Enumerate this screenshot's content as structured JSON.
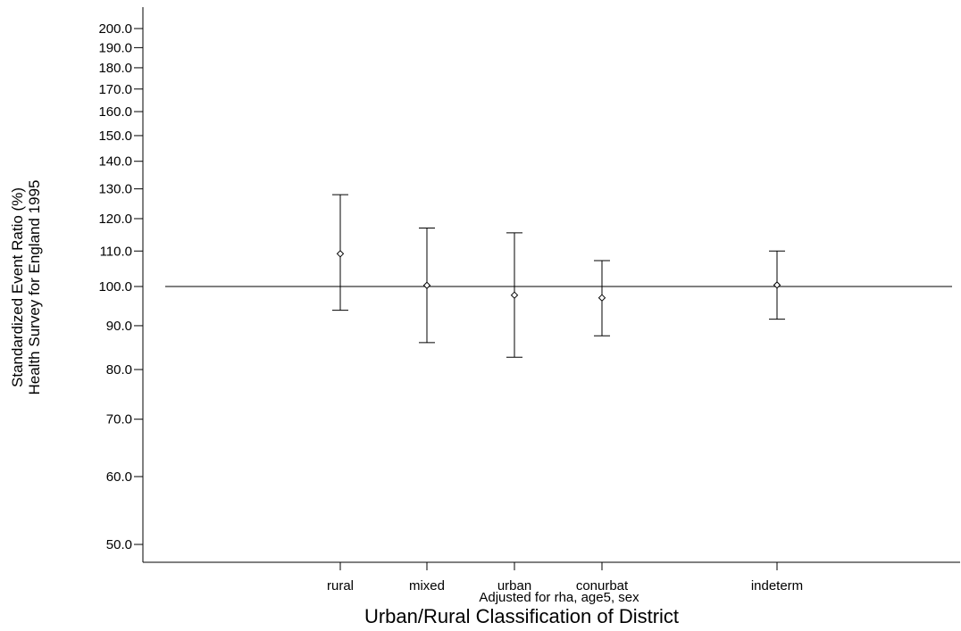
{
  "chart_data": {
    "type": "scatter",
    "scale": "log",
    "ylim": [
      47,
      210
    ],
    "y_ticks": [
      50,
      60,
      70,
      80,
      90,
      100,
      110,
      120,
      130,
      140,
      150,
      160,
      170,
      180,
      190,
      200
    ],
    "y_tick_labels": [
      "50.0",
      "60.0",
      "70.0",
      "80.0",
      "90.0",
      "100.0",
      "110.0",
      "120.0",
      "130.0",
      "140.0",
      "150.0",
      "160.0",
      "170.0",
      "180.0",
      "190.0",
      "200.0"
    ],
    "ylabel_line1": "Standardized Event Ratio (%)",
    "ylabel_line2": "Health Survey for England 1995",
    "xlabel": "Urban/Rural Classification of District",
    "note": "Adjusted for rha, age5, sex",
    "reference_line": 100,
    "points": [
      {
        "category": "rural",
        "x": 1,
        "estimate": 109.2,
        "lower": 93.8,
        "upper": 128.0
      },
      {
        "category": "mixed",
        "x": 2,
        "estimate": 100.3,
        "lower": 86.0,
        "upper": 117.0
      },
      {
        "category": "urban",
        "x": 3,
        "estimate": 97.7,
        "lower": 82.7,
        "upper": 115.5
      },
      {
        "category": "conurbat",
        "x": 4,
        "estimate": 97.0,
        "lower": 87.6,
        "upper": 107.2
      },
      {
        "category": "indeterm",
        "x": 6,
        "estimate": 100.4,
        "lower": 91.6,
        "upper": 110.0
      }
    ],
    "xlim": [
      -1,
      8
    ]
  }
}
